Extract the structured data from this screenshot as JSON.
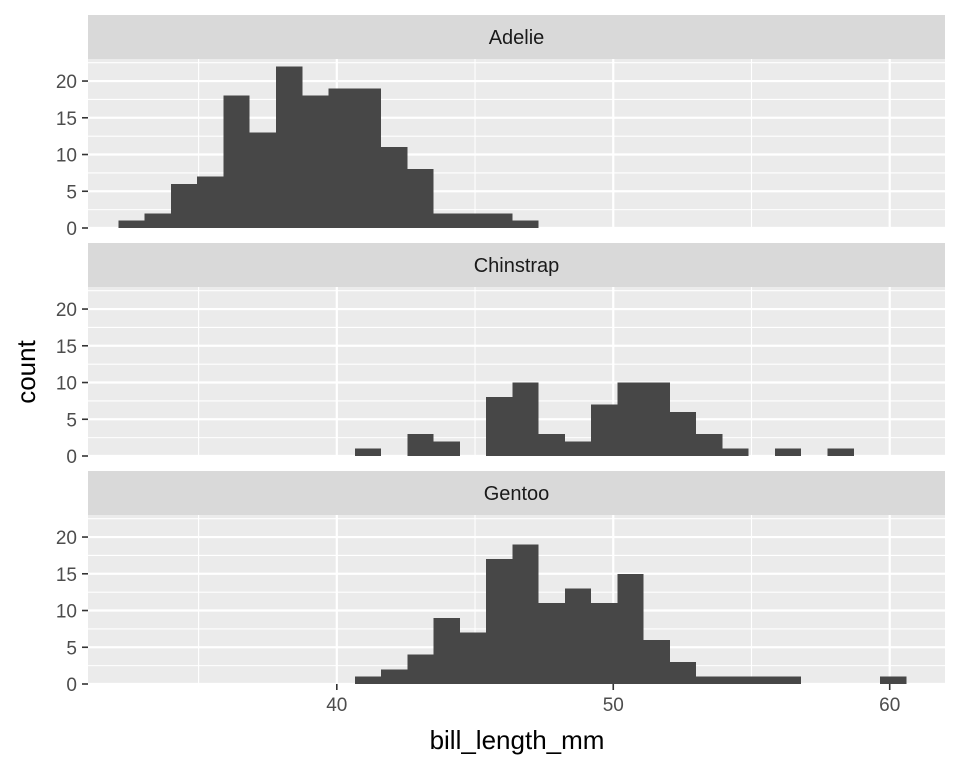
{
  "chart_data": {
    "type": "bar",
    "subtype": "faceted-histogram",
    "xlabel": "bill_length_mm",
    "ylabel": "count",
    "xlim": [
      31,
      62
    ],
    "ylim": [
      0,
      23
    ],
    "x_ticks": [
      40,
      50,
      60
    ],
    "y_ticks": [
      0,
      5,
      10,
      15,
      20
    ],
    "grid": true,
    "bin_width": 0.95,
    "bin_start": 32.1,
    "bar_color": "#474747",
    "panel_background": "#ebebeb",
    "strip_background": "#d9d9d9",
    "facets": [
      {
        "name": "Adelie",
        "counts": [
          1,
          2,
          6,
          7,
          18,
          13,
          22,
          18,
          19,
          19,
          11,
          8,
          2,
          2,
          2,
          1
        ]
      },
      {
        "name": "Chinstrap",
        "counts": [
          0,
          0,
          0,
          0,
          0,
          0,
          0,
          0,
          0,
          1,
          0,
          3,
          2,
          0,
          8,
          10,
          3,
          2,
          7,
          10,
          10,
          6,
          3,
          1,
          0,
          1,
          0,
          1
        ]
      },
      {
        "name": "Gentoo",
        "counts": [
          0,
          0,
          0,
          0,
          0,
          0,
          0,
          0,
          0,
          1,
          2,
          4,
          9,
          7,
          17,
          19,
          11,
          13,
          11,
          15,
          6,
          3,
          1,
          1,
          1,
          1,
          0,
          0,
          0,
          1
        ]
      }
    ]
  }
}
